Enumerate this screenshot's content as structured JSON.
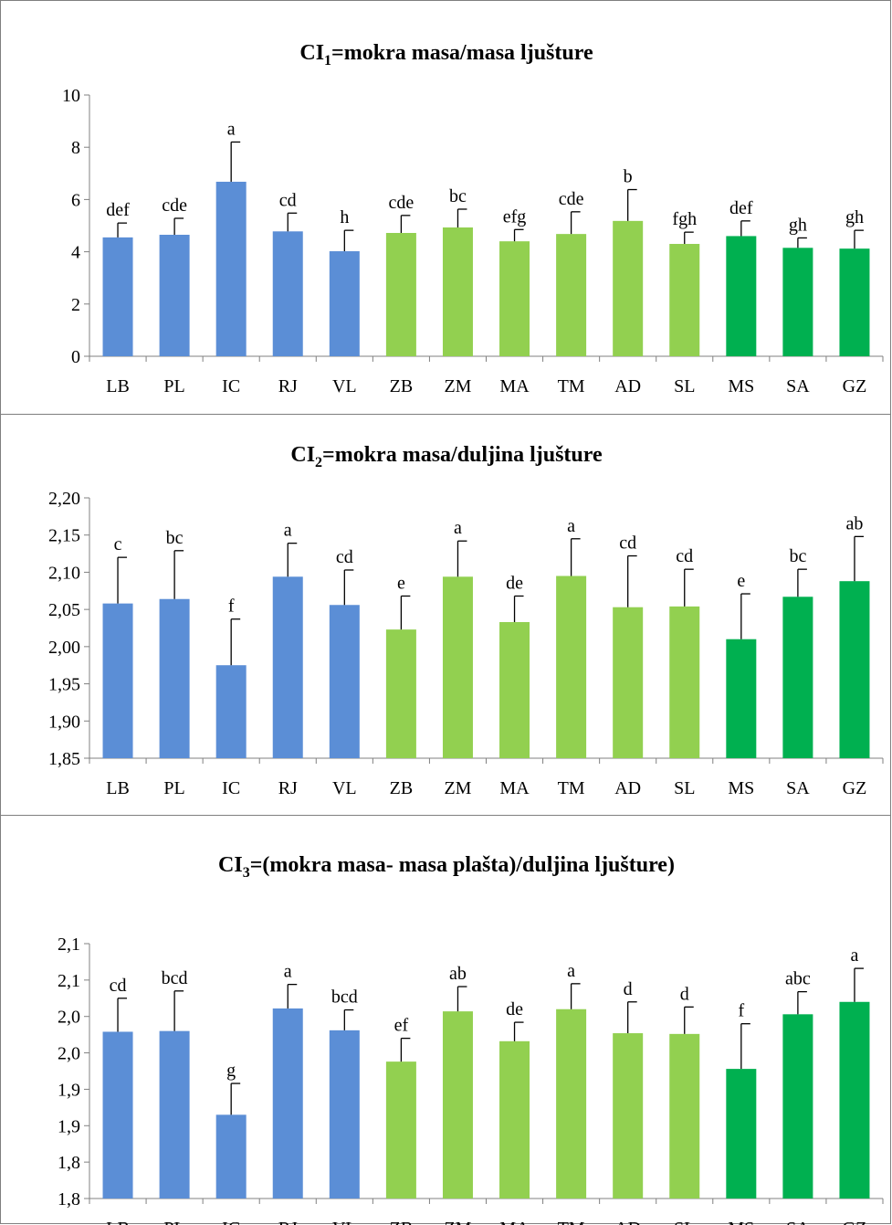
{
  "colors": {
    "blue": "#5b8ed6",
    "light_green": "#92d050",
    "green": "#00b050",
    "axis": "#808080",
    "error_bar": "#000000"
  },
  "chart_data": [
    {
      "type": "bar",
      "title_main": "CI",
      "title_sub": "1",
      "title_rest": "=mokra masa/masa ljušture",
      "categories": [
        "LB",
        "PL",
        "IC",
        "RJ",
        "VL",
        "ZB",
        "ZM",
        "MA",
        "TM",
        "AD",
        "SL",
        "MS",
        "SA",
        "GZ"
      ],
      "category_colors": [
        "blue",
        "blue",
        "blue",
        "blue",
        "blue",
        "light_green",
        "light_green",
        "light_green",
        "light_green",
        "light_green",
        "light_green",
        "green",
        "green",
        "green"
      ],
      "values": [
        4.55,
        4.65,
        6.68,
        4.78,
        4.02,
        4.72,
        4.93,
        4.4,
        4.68,
        5.18,
        4.3,
        4.6,
        4.15,
        4.12
      ],
      "errors": [
        0.55,
        0.63,
        1.52,
        0.7,
        0.8,
        0.67,
        0.7,
        0.45,
        0.85,
        1.2,
        0.45,
        0.58,
        0.38,
        0.7
      ],
      "letters": [
        "def",
        "cde",
        "a",
        "cd",
        "h",
        "cde",
        "bc",
        "efg",
        "cde",
        "b",
        "fgh",
        "def",
        "gh",
        "gh"
      ],
      "ylim": [
        0,
        10
      ],
      "yticks": [
        "0",
        "2",
        "4",
        "6",
        "8",
        "10"
      ]
    },
    {
      "type": "bar",
      "title_main": "CI",
      "title_sub": "2",
      "title_rest": "=mokra masa/duljina ljušture",
      "categories": [
        "LB",
        "PL",
        "IC",
        "RJ",
        "VL",
        "ZB",
        "ZM",
        "MA",
        "TM",
        "AD",
        "SL",
        "MS",
        "SA",
        "GZ"
      ],
      "category_colors": [
        "blue",
        "blue",
        "blue",
        "blue",
        "blue",
        "light_green",
        "light_green",
        "light_green",
        "light_green",
        "light_green",
        "light_green",
        "green",
        "green",
        "green"
      ],
      "values": [
        2.058,
        2.064,
        1.975,
        2.094,
        2.056,
        2.023,
        2.094,
        2.033,
        2.095,
        2.053,
        2.054,
        2.01,
        2.067,
        2.088
      ],
      "errors": [
        0.062,
        0.065,
        0.062,
        0.045,
        0.047,
        0.045,
        0.048,
        0.035,
        0.05,
        0.069,
        0.05,
        0.061,
        0.037,
        0.06
      ],
      "letters": [
        "c",
        "bc",
        "f",
        "a",
        "cd",
        "e",
        "a",
        "de",
        "a",
        "cd",
        "cd",
        "e",
        "bc",
        "ab"
      ],
      "ylim": [
        1.85,
        2.2
      ],
      "yticks": [
        "1,85",
        "1,90",
        "1,95",
        "2,00",
        "2,05",
        "2,10",
        "2,15",
        "2,20"
      ]
    },
    {
      "type": "bar",
      "title_main": "CI",
      "title_sub": "3",
      "title_rest": "=(mokra masa- masa plašta)/duljina ljušture)",
      "categories": [
        "LB",
        "PL",
        "IC",
        "RJ",
        "VL",
        "ZB",
        "ZM",
        "MA",
        "TM",
        "AD",
        "SL",
        "MS",
        "SA",
        "GZ"
      ],
      "category_colors": [
        "blue",
        "blue",
        "blue",
        "blue",
        "blue",
        "light_green",
        "light_green",
        "light_green",
        "light_green",
        "light_green",
        "light_green",
        "green",
        "green",
        "green"
      ],
      "values": [
        1.979,
        1.98,
        1.865,
        2.011,
        1.981,
        1.938,
        2.007,
        1.966,
        2.01,
        1.977,
        1.976,
        1.928,
        2.003,
        2.02
      ],
      "errors": [
        0.046,
        0.055,
        0.043,
        0.033,
        0.028,
        0.032,
        0.034,
        0.026,
        0.035,
        0.043,
        0.037,
        0.062,
        0.031,
        0.046
      ],
      "letters": [
        "cd",
        "bcd",
        "g",
        "a",
        "bcd",
        "ef",
        "ab",
        "de",
        "a",
        "d",
        "d",
        "f",
        "abc",
        "a"
      ],
      "ylim": [
        1.75,
        2.1
      ],
      "yticks": [
        "1,8",
        "1,8",
        "1,9",
        "1,9",
        "2,0",
        "2,0",
        "2,1",
        "2,1"
      ]
    }
  ]
}
